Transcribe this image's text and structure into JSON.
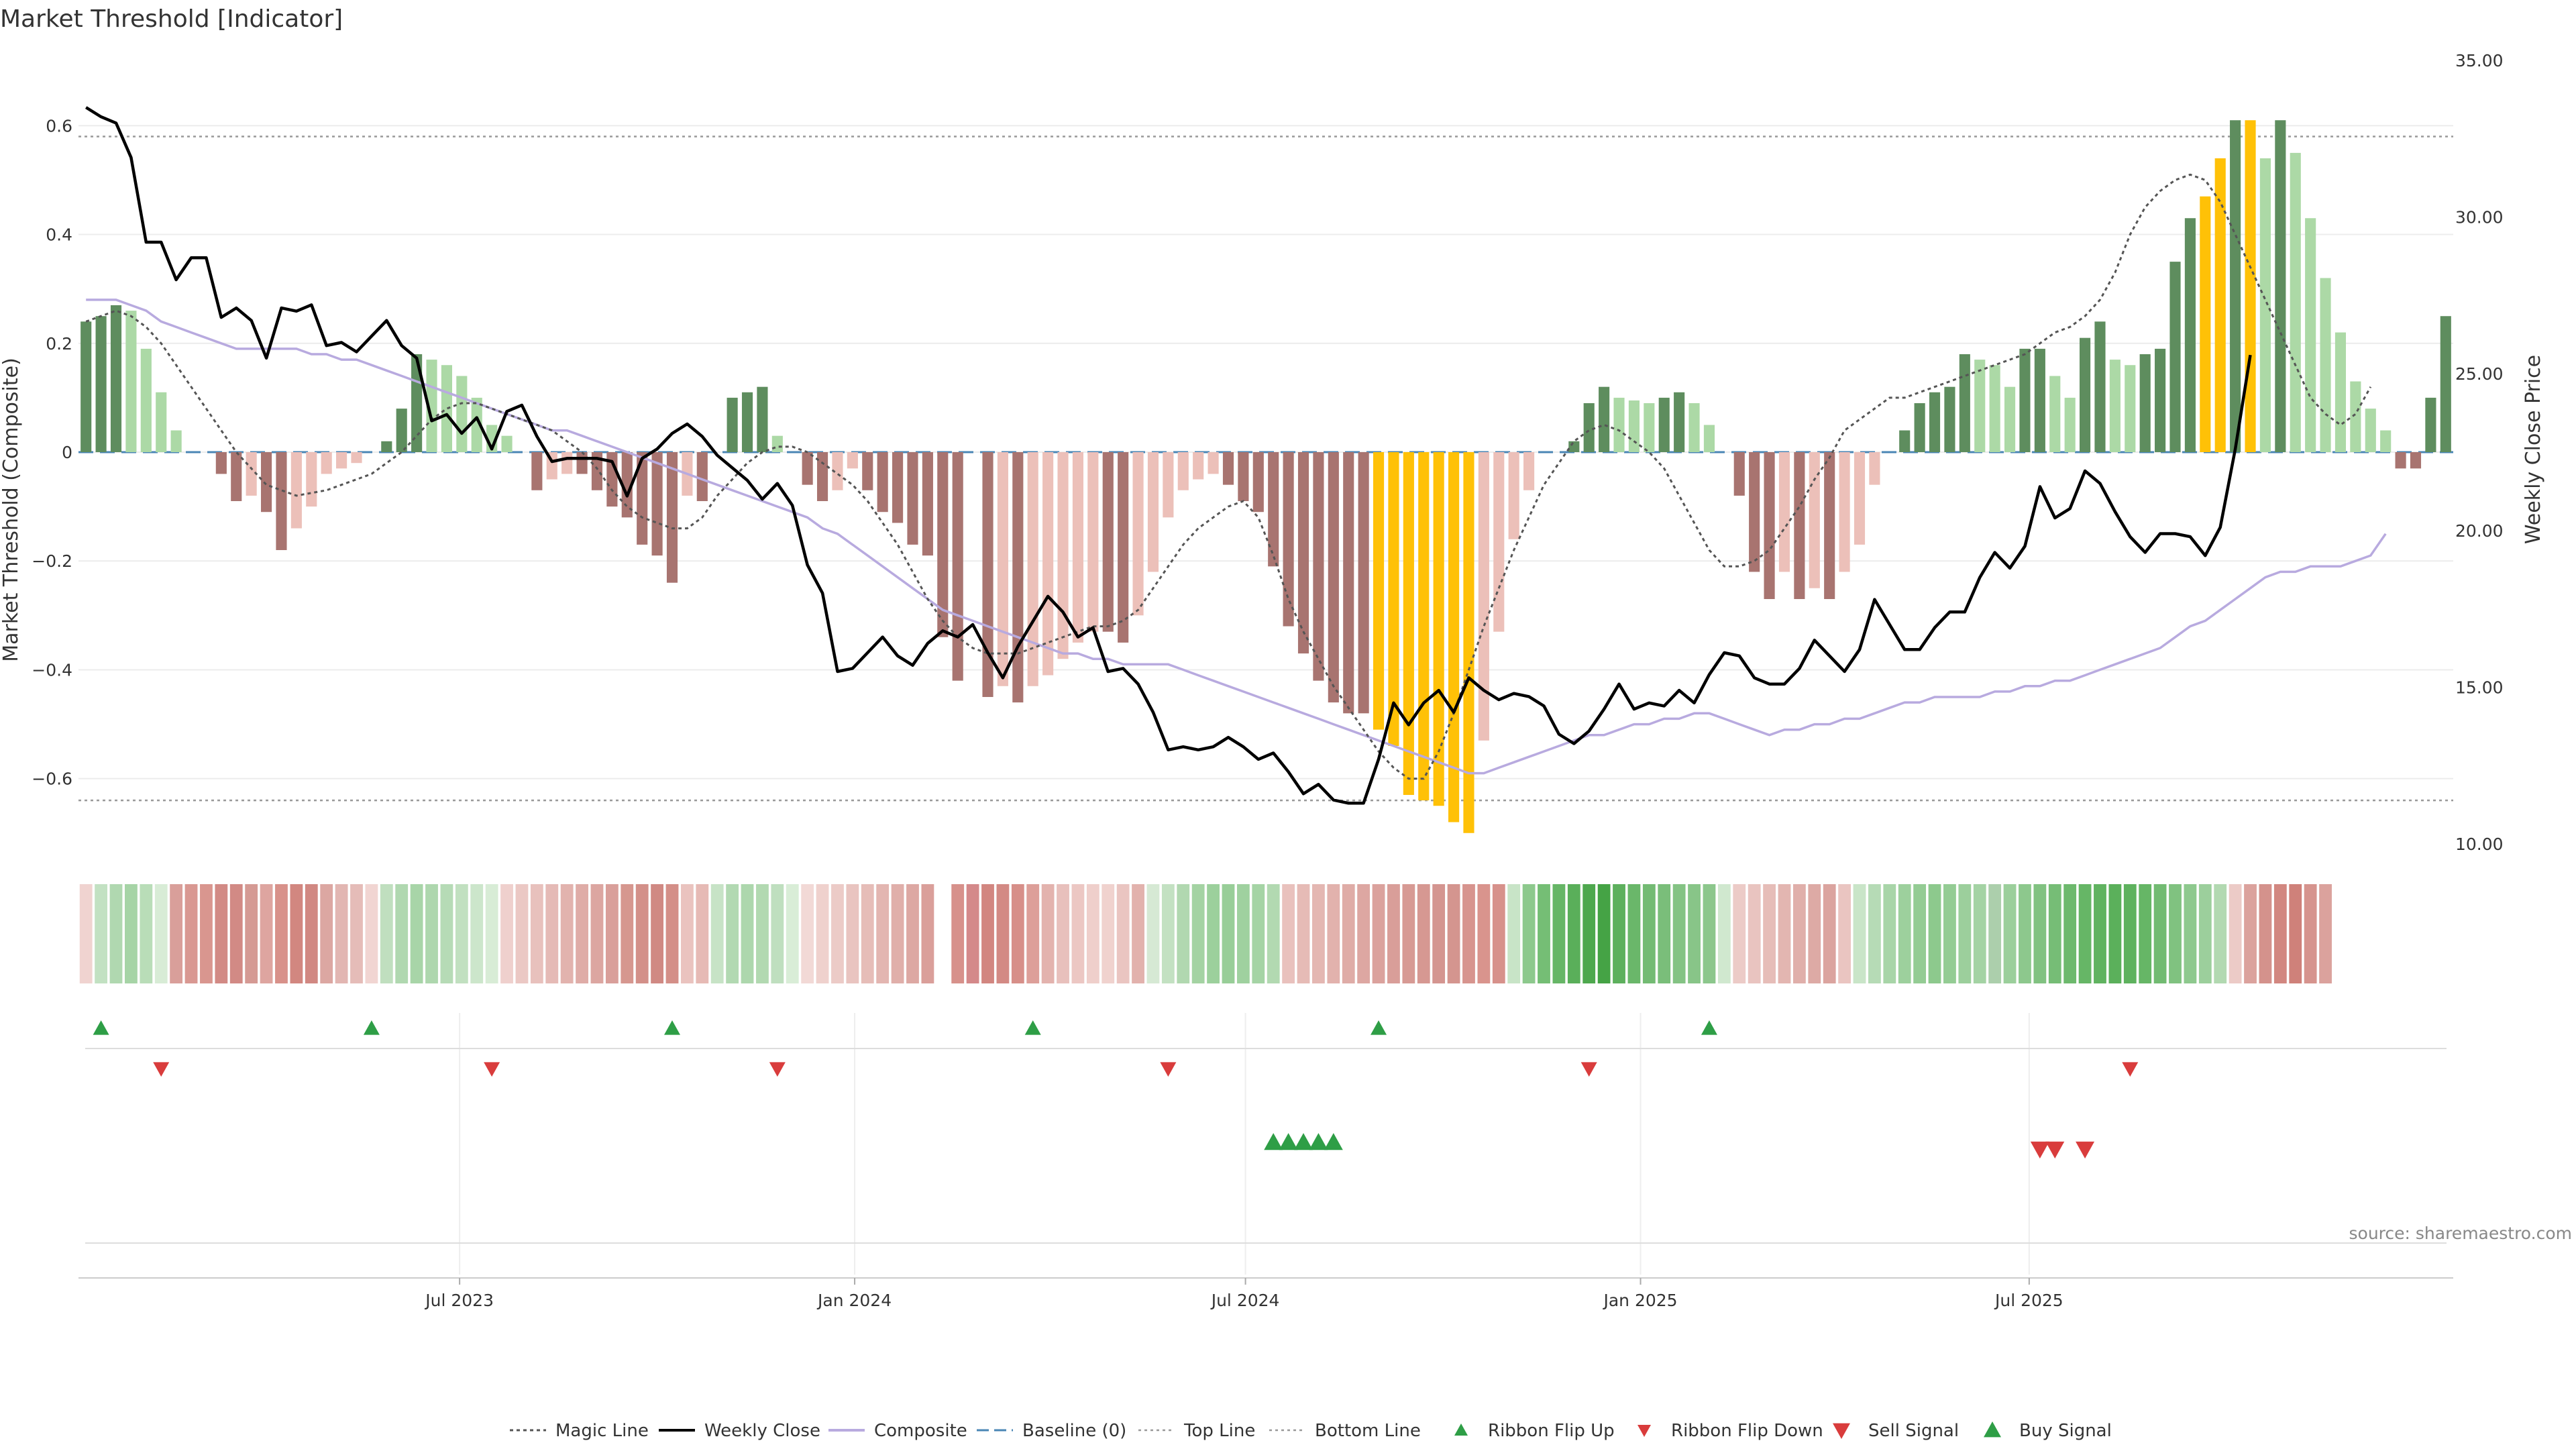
{
  "title": "Market Threshold [Indicator]",
  "source": "source: sharemaestro.com",
  "colors": {
    "pos_strong": "#5e8d5e",
    "pos_weak": "#acd9a6",
    "neg_strong": "#a87470",
    "neg_weak": "#ecc0b9",
    "extreme": "#ffc107",
    "close_line": "#000000",
    "composite_line": "#b8aadf",
    "magic_line": "#555555",
    "baseline": "#4a86b5",
    "buy": "#2e9e46",
    "sell": "#d93c3c"
  },
  "chart_data": {
    "type": "bar",
    "xlabel": "",
    "ylabel": "Market Threshold (Composite)",
    "ylabel_right": "Weekly Close Price",
    "ylim": [
      -0.72,
      0.72
    ],
    "ylim_right": [
      10,
      35
    ],
    "yticks": [
      "0.6",
      "0.4",
      "0.2",
      "0",
      "−0.2",
      "−0.4",
      "−0.6"
    ],
    "ytick_values": [
      0.6,
      0.4,
      0.2,
      0,
      -0.2,
      -0.4,
      -0.6
    ],
    "yticks_right": [
      "35.00",
      "30.00",
      "25.00",
      "20.00",
      "15.00",
      "10.00"
    ],
    "ytick_right_values": [
      35,
      30,
      25,
      20,
      15,
      10
    ],
    "x_start": "2023-01-08",
    "x_step_days": 7,
    "xtick_labels": [
      "Jul 2023",
      "Jan 2024",
      "Jul 2024",
      "Jan 2025",
      "Jul 2025"
    ],
    "xtick_dates": [
      "2023-07-01",
      "2024-01-01",
      "2024-07-01",
      "2025-01-01",
      "2025-07-01"
    ],
    "top_line": 0.58,
    "bottom_line": -0.64,
    "composite": [
      0.24,
      0.25,
      0.27,
      0.26,
      0.19,
      0.11,
      0.04,
      0,
      0,
      -0.04,
      -0.09,
      -0.08,
      -0.11,
      -0.18,
      -0.14,
      -0.1,
      -0.04,
      -0.03,
      -0.02,
      0,
      0.02,
      0.08,
      0.18,
      0.17,
      0.16,
      0.14,
      0.1,
      0.05,
      0.03,
      0,
      -0.07,
      -0.05,
      -0.04,
      -0.04,
      -0.07,
      -0.1,
      -0.12,
      -0.17,
      -0.19,
      -0.24,
      -0.08,
      -0.09,
      0,
      0.1,
      0.11,
      0.12,
      0.03,
      0,
      -0.06,
      -0.09,
      -0.07,
      -0.03,
      -0.07,
      -0.11,
      -0.13,
      -0.17,
      -0.19,
      -0.34,
      -0.42,
      0,
      -0.45,
      -0.43,
      -0.46,
      -0.43,
      -0.41,
      -0.38,
      -0.35,
      -0.33,
      -0.33,
      -0.35,
      -0.3,
      -0.22,
      -0.12,
      -0.07,
      -0.05,
      -0.04,
      -0.06,
      -0.09,
      -0.11,
      -0.21,
      -0.32,
      -0.37,
      -0.42,
      -0.46,
      -0.48,
      -0.48,
      -0.51,
      -0.54,
      -0.63,
      -0.64,
      -0.65,
      -0.68,
      -0.7,
      -0.53,
      -0.33,
      -0.16,
      -0.07,
      0,
      0,
      0.02,
      0.09,
      0.12,
      0.1,
      0.095,
      0.09,
      0.1,
      0.11,
      0.09,
      0.05,
      0,
      -0.08,
      -0.22,
      -0.27,
      -0.22,
      -0.27,
      -0.25,
      -0.27,
      -0.22,
      -0.17,
      -0.06,
      0,
      0.04,
      0.09,
      0.11,
      0.12,
      0.18,
      0.17,
      0.16,
      0.12,
      0.19,
      0.19,
      0.14,
      0.1,
      0.21,
      0.24,
      0.17,
      0.16,
      0.18,
      0.19,
      0.35,
      0.43,
      0.47,
      0.54,
      0.61,
      0.61,
      0.54,
      0.61,
      0.55,
      0.43,
      0.32,
      0.22,
      0.13,
      0.08,
      0.04,
      -0.03,
      -0.03,
      0.1,
      0.25
    ],
    "weekly_close": [
      33.5,
      33.2,
      33,
      31.9,
      29.2,
      29.2,
      28,
      28.7,
      28.7,
      26.8,
      27.1,
      26.7,
      25.5,
      27.1,
      27,
      27.2,
      25.9,
      26,
      25.7,
      26.2,
      26.7,
      25.9,
      25.5,
      23.5,
      23.7,
      23.1,
      23.6,
      22.6,
      23.8,
      24,
      23,
      22.2,
      22.3,
      22.3,
      22.3,
      22.2,
      21.1,
      22.3,
      22.6,
      23.1,
      23.4,
      23,
      22.4,
      22,
      21.6,
      21,
      21.5,
      20.8,
      18.9,
      18,
      15.5,
      15.6,
      16.1,
      16.6,
      16,
      15.7,
      16.4,
      16.8,
      16.6,
      17,
      16.1,
      15.3,
      16.3,
      17.1,
      17.9,
      17.4,
      16.6,
      16.9,
      15.5,
      15.6,
      15.1,
      14.2,
      13,
      13.1,
      13,
      13.1,
      13.4,
      13.1,
      12.7,
      12.9,
      12.3,
      11.6,
      11.9,
      11.4,
      11.3,
      11.3,
      12.7,
      14.5,
      13.8,
      14.5,
      14.9,
      14.2,
      15.3,
      14.9,
      14.6,
      14.8,
      14.7,
      14.4,
      13.5,
      13.2,
      13.6,
      14.3,
      15.1,
      14.3,
      14.5,
      14.4,
      14.9,
      14.5,
      15.4,
      16.1,
      16,
      15.3,
      15.1,
      15.1,
      15.6,
      16.5,
      16,
      15.5,
      16.2,
      17.8,
      17,
      16.2,
      16.2,
      16.9,
      17.4,
      17.4,
      18.5,
      19.3,
      18.8,
      19.5,
      21.4,
      20.4,
      20.7,
      21.9,
      21.5,
      20.6,
      19.8,
      19.3,
      19.9,
      19.9,
      19.8,
      19.2,
      20.1,
      22.6,
      25.6
    ],
    "magic_line": [
      0.24,
      0.25,
      0.26,
      0.25,
      0.23,
      0.2,
      0.16,
      0.12,
      0.08,
      0.04,
      0,
      -0.03,
      -0.06,
      -0.07,
      -0.08,
      -0.075,
      -0.07,
      -0.06,
      -0.05,
      -0.04,
      -0.02,
      0,
      0.03,
      0.06,
      0.08,
      0.09,
      0.09,
      0.08,
      0.07,
      0.06,
      0.05,
      0.04,
      0.02,
      0,
      -0.03,
      -0.07,
      -0.1,
      -0.12,
      -0.13,
      -0.14,
      -0.14,
      -0.12,
      -0.08,
      -0.05,
      -0.02,
      0,
      0.01,
      0.01,
      0,
      -0.02,
      -0.04,
      -0.06,
      -0.09,
      -0.13,
      -0.17,
      -0.22,
      -0.27,
      -0.31,
      -0.34,
      -0.36,
      -0.37,
      -0.37,
      -0.37,
      -0.36,
      -0.35,
      -0.34,
      -0.33,
      -0.32,
      -0.32,
      -0.31,
      -0.29,
      -0.25,
      -0.21,
      -0.17,
      -0.14,
      -0.12,
      -0.1,
      -0.09,
      -0.12,
      -0.19,
      -0.27,
      -0.33,
      -0.38,
      -0.43,
      -0.47,
      -0.51,
      -0.55,
      -0.58,
      -0.6,
      -0.6,
      -0.55,
      -0.48,
      -0.4,
      -0.32,
      -0.25,
      -0.18,
      -0.12,
      -0.06,
      -0.02,
      0.02,
      0.04,
      0.05,
      0.04,
      0.02,
      0,
      -0.03,
      -0.08,
      -0.13,
      -0.18,
      -0.21,
      -0.21,
      -0.2,
      -0.18,
      -0.14,
      -0.1,
      -0.05,
      -0.01,
      0.04,
      0.06,
      0.08,
      0.1,
      0.1,
      0.11,
      0.12,
      0.13,
      0.14,
      0.15,
      0.16,
      0.17,
      0.18,
      0.2,
      0.22,
      0.23,
      0.25,
      0.28,
      0.33,
      0.4,
      0.45,
      0.48,
      0.5,
      0.51,
      0.5,
      0.46,
      0.4,
      0.34,
      0.28,
      0.22,
      0.16,
      0.1,
      0.07,
      0.05,
      0.07,
      0.12
    ],
    "composite_line": [
      0.28,
      0.28,
      0.28,
      0.27,
      0.26,
      0.24,
      0.23,
      0.22,
      0.21,
      0.2,
      0.19,
      0.19,
      0.19,
      0.19,
      0.19,
      0.18,
      0.18,
      0.17,
      0.17,
      0.16,
      0.15,
      0.14,
      0.13,
      0.12,
      0.11,
      0.1,
      0.09,
      0.08,
      0.07,
      0.06,
      0.05,
      0.04,
      0.04,
      0.03,
      0.02,
      0.01,
      0,
      -0.01,
      -0.02,
      -0.03,
      -0.04,
      -0.05,
      -0.06,
      -0.07,
      -0.08,
      -0.09,
      -0.1,
      -0.11,
      -0.12,
      -0.14,
      -0.15,
      -0.17,
      -0.19,
      -0.21,
      -0.23,
      -0.25,
      -0.27,
      -0.29,
      -0.3,
      -0.31,
      -0.32,
      -0.33,
      -0.34,
      -0.35,
      -0.36,
      -0.37,
      -0.37,
      -0.38,
      -0.38,
      -0.39,
      -0.39,
      -0.39,
      -0.39,
      -0.4,
      -0.41,
      -0.42,
      -0.43,
      -0.44,
      -0.45,
      -0.46,
      -0.47,
      -0.48,
      -0.49,
      -0.5,
      -0.51,
      -0.52,
      -0.53,
      -0.54,
      -0.55,
      -0.56,
      -0.57,
      -0.58,
      -0.59,
      -0.59,
      -0.58,
      -0.57,
      -0.56,
      -0.55,
      -0.54,
      -0.53,
      -0.52,
      -0.52,
      -0.51,
      -0.5,
      -0.5,
      -0.49,
      -0.49,
      -0.48,
      -0.48,
      -0.49,
      -0.5,
      -0.51,
      -0.52,
      -0.51,
      -0.51,
      -0.5,
      -0.5,
      -0.49,
      -0.49,
      -0.48,
      -0.47,
      -0.46,
      -0.46,
      -0.45,
      -0.45,
      -0.45,
      -0.45,
      -0.44,
      -0.44,
      -0.43,
      -0.43,
      -0.42,
      -0.42,
      -0.41,
      -0.4,
      -0.39,
      -0.38,
      -0.37,
      -0.36,
      -0.34,
      -0.32,
      -0.31,
      -0.29,
      -0.27,
      -0.25,
      -0.23,
      -0.22,
      -0.22,
      -0.21,
      -0.21,
      -0.21,
      -0.2,
      -0.19,
      -0.15
    ],
    "extreme_bars": [
      86,
      87,
      88,
      89,
      90,
      91,
      92,
      141,
      142,
      144
    ],
    "ribbon_flip_up": [
      1,
      19,
      39,
      63,
      86,
      108
    ],
    "ribbon_flip_down": [
      5,
      27,
      46,
      72,
      100,
      136
    ],
    "buy_signal": [
      79,
      80,
      81,
      82,
      83
    ],
    "sell_signal": [
      130,
      131,
      133
    ],
    "ribbon_colors": [
      "#f0d3d0",
      "#c2e1c2",
      "#b0d8b0",
      "#a6d4a6",
      "#b9ddb8",
      "#d8ecd6",
      "#d99f9a",
      "#d99892",
      "#d9968f",
      "#d28a85",
      "#d28a85",
      "#d59a94",
      "#dea5a0",
      "#d8918a",
      "#d28780",
      "#d18882",
      "#dca7a2",
      "#e2b6b2",
      "#e5bcb8",
      "#f1d5d2",
      "#c0dfbf",
      "#b0d8b0",
      "#a8d5a8",
      "#aed7ae",
      "#b6dbb6",
      "#c1e0c0",
      "#ccE6cb",
      "#d8ecd6",
      "#efd0cd",
      "#ebc8c4",
      "#e8c1bd",
      "#e5bab6",
      "#e2b3ae",
      "#dfaca7",
      "#dca6a1",
      "#d99f9a",
      "#d6978f",
      "#d39089",
      "#d08983",
      "#d48f88",
      "#eac3bf",
      "#e6bab5",
      "#c7e3c6",
      "#b2d9b2",
      "#add7ad",
      "#b2d9b1",
      "#bfdfbf",
      "#d9edd7",
      "#f2d9d6",
      "#efd1cd",
      "#eccbc7",
      "#e9c4c0",
      "#e6bdb8",
      "#e3b6b1",
      "#e0afaa",
      "#dda8a3",
      "#da9f9a",
      "#ffffff",
      "#d7918b",
      "#d4898a",
      "#d28680",
      "#d38a84",
      "#d78f89",
      "#dd9f99",
      "#e3b3ae",
      "#e8c0bc",
      "#ecc7c3",
      "#efcfcb",
      "#f0d2ce",
      "#eac5c1",
      "#e2b2ad",
      "#d6e9d4",
      "#c3e1c2",
      "#b1d8b0",
      "#a4d3a3",
      "#9cd09c",
      "#98ce98",
      "#9fd19f",
      "#a5d4a5",
      "#b2d9b1",
      "#e9c1bd",
      "#e6bbb6",
      "#e4b7b2",
      "#e2b2ad",
      "#dfaca7",
      "#dda7a2",
      "#dba29d",
      "#d99e99",
      "#d79a94",
      "#d69892",
      "#d49590",
      "#d4958f",
      "#d7948e",
      "#d9948d",
      "#d7918b",
      "#c8e4c7",
      "#8dc98d",
      "#75be75",
      "#66b666",
      "#5aaf5a",
      "#4ea84e",
      "#45a345",
      "#5db05d",
      "#6ab76a",
      "#73bb73",
      "#7abe7a",
      "#84c384",
      "#88c588",
      "#8cc78c",
      "#d0e8cf",
      "#eccbc7",
      "#e9c4c0",
      "#e6bdb8",
      "#e3b6b1",
      "#e0afaa",
      "#ddaaa5",
      "#dba49f",
      "#eac5c1",
      "#c9e5c8",
      "#b6dbb6",
      "#a8d5a8",
      "#9dd09d",
      "#94cc94",
      "#8dc98d",
      "#94cc94",
      "#9ccf9c",
      "#a4d3a4",
      "#accf ac",
      "#9bcf9b",
      "#8dc88d",
      "#81c281",
      "#76bd76",
      "#6db96d",
      "#66b666",
      "#60b360",
      "#5bb05b",
      "#5eb25e",
      "#66b666",
      "#72bb72",
      "#80c280",
      "#8ec98e",
      "#9ccf9c",
      "#b2d9b1",
      "#eccbc7",
      "#dba29d",
      "#d4928c",
      "#d28780",
      "#cf817a",
      "#d6948e",
      "#dba29d"
    ],
    "legend": [
      {
        "label": "Magic Line",
        "key": "magic"
      },
      {
        "label": "Weekly Close",
        "key": "close"
      },
      {
        "label": "Composite",
        "key": "composite"
      },
      {
        "label": "Baseline (0)",
        "key": "baseline"
      },
      {
        "label": "Top Line",
        "key": "top"
      },
      {
        "label": "Bottom Line",
        "key": "bottom"
      },
      {
        "label": "Ribbon Flip Up",
        "key": "flipup"
      },
      {
        "label": "Ribbon Flip Down",
        "key": "flipdown"
      },
      {
        "label": "Sell Signal",
        "key": "sell"
      },
      {
        "label": "Buy Signal",
        "key": "buy"
      }
    ]
  }
}
